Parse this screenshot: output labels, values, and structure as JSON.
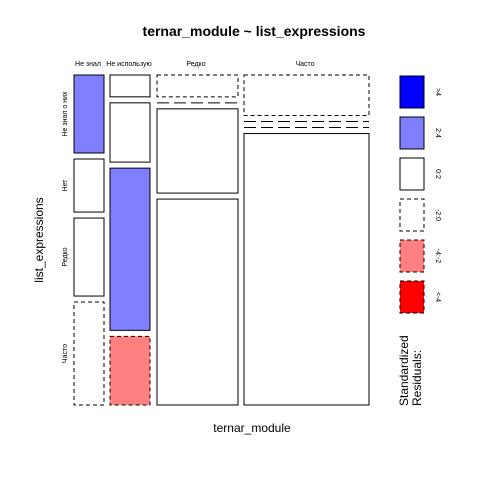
{
  "chart_data": {
    "type": "mosaic",
    "title": "ternar_module ~ list_expressions",
    "xlabel": "ternar_module",
    "ylabel": "list_expressions",
    "x_categories": [
      "Не знал",
      "Не использую",
      "Редко",
      "Часто"
    ],
    "y_categories": [
      "Не знал о них",
      "Нет",
      "Редко",
      "Часто"
    ],
    "column_proportions": [
      0.086,
      0.137,
      0.241,
      0.374
    ],
    "cells": [
      {
        "x": "Не знал",
        "y": "Не знал о них",
        "proportion": 0.25,
        "residual_band": "2:4"
      },
      {
        "x": "Не знал",
        "y": "Нет",
        "proportion": 0.17,
        "residual_band": "0:2"
      },
      {
        "x": "Не знал",
        "y": "Редко",
        "proportion": 0.25,
        "residual_band": "0:2"
      },
      {
        "x": "Не знал",
        "y": "Часто",
        "proportion": 0.33,
        "residual_band": "-2:0"
      },
      {
        "x": "Не использую",
        "y": "Не знал о них",
        "proportion": 0.07,
        "residual_band": "0:2"
      },
      {
        "x": "Не использую",
        "y": "Нет",
        "proportion": 0.19,
        "residual_band": "0:2"
      },
      {
        "x": "Не использую",
        "y": "Редко",
        "proportion": 0.52,
        "residual_band": "2:4"
      },
      {
        "x": "Не использую",
        "y": "Часто",
        "proportion": 0.22,
        "residual_band": "-4:-2"
      },
      {
        "x": "Редко",
        "y": "Не знал о них",
        "proportion": 0.07,
        "residual_band": "-2:0"
      },
      {
        "x": "Редко",
        "y": "Нет",
        "proportion": 0.0,
        "residual_band": "-2:0"
      },
      {
        "x": "Редко",
        "y": "Редко",
        "proportion": 0.27,
        "residual_band": "0:2"
      },
      {
        "x": "Редко",
        "y": "Часто",
        "proportion": 0.66,
        "residual_band": "0:2"
      },
      {
        "x": "Часто",
        "y": "Не знал о них",
        "proportion": 0.13,
        "residual_band": "-2:0"
      },
      {
        "x": "Часто",
        "y": "Нет",
        "proportion": 0.0,
        "residual_band": "-2:0"
      },
      {
        "x": "Часто",
        "y": "Редко",
        "proportion": 0.0,
        "residual_band": "-2:0"
      },
      {
        "x": "Часто",
        "y": "Часто",
        "proportion": 0.87,
        "residual_band": "0:2"
      }
    ],
    "legend": {
      "title": "Standardized\nResiduals:",
      "bands": [
        {
          "label": ">4",
          "color": "#0000ff",
          "dashed": false
        },
        {
          "label": "2:4",
          "color": "#8080ff",
          "dashed": false
        },
        {
          "label": "0:2",
          "color": "#ffffff",
          "dashed": false
        },
        {
          "label": "-2:0",
          "color": "#ffffff",
          "dashed": true
        },
        {
          "label": "-4:-2",
          "color": "#ff8080",
          "dashed": true
        },
        {
          "label": "<-4",
          "color": "#ff0000",
          "dashed": true
        }
      ]
    }
  }
}
